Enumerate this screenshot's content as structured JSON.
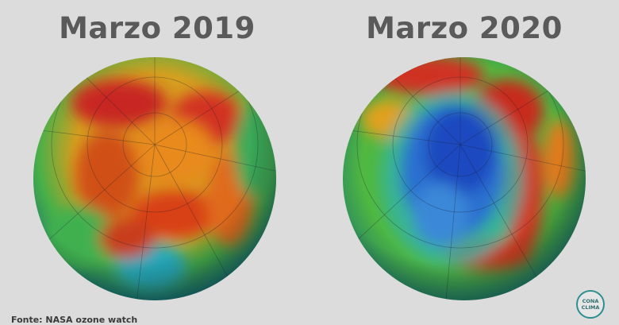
{
  "titles": {
    "left": "Marzo 2019",
    "right": "Marzo 2020"
  },
  "source": "Fonte: NASA ozone watch",
  "logo": {
    "line1": "CONA",
    "line2": "CLIMA"
  },
  "colors": {
    "background": "#dcdcdc",
    "title": "#5a5a5a",
    "ozone_high": "#c81e1e",
    "ozone_mid": "#f0a020",
    "ozone_lowmid": "#38b848",
    "ozone_low": "#1a50c8"
  }
}
